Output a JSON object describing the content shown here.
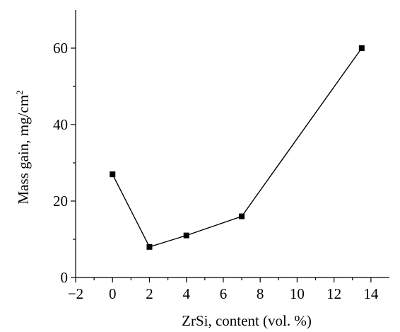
{
  "chart_data": {
    "type": "line",
    "xlabel": "ZrSi, content (vol. %)",
    "ylabel_main": "Mass gain, mg/cm",
    "ylabel_sup": "2",
    "xlim": [
      -2,
      15
    ],
    "ylim": [
      0,
      70
    ],
    "xticks": [
      -2,
      0,
      2,
      4,
      6,
      8,
      10,
      12,
      14
    ],
    "xtick_labels": [
      "−2",
      "0",
      "2",
      "4",
      "6",
      "8",
      "10",
      "12",
      "14"
    ],
    "yticks": [
      0,
      20,
      40,
      60
    ],
    "ytick_labels": [
      "0",
      "20",
      "40",
      "60"
    ],
    "grid": false,
    "marker": "square",
    "series": [
      {
        "x": [
          0,
          2,
          4,
          7,
          13.5
        ],
        "y": [
          27,
          8,
          11,
          16,
          60
        ]
      }
    ]
  }
}
